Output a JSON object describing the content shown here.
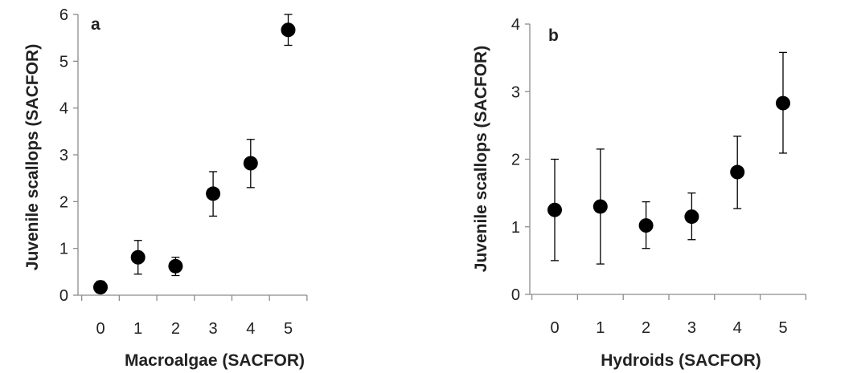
{
  "chart_data": [
    {
      "type": "scatter",
      "panel_label": "a",
      "xlabel": "Macroalgae (SACFOR)",
      "ylabel": "Juvenile scallops (SACFOR)",
      "x": [
        0,
        1,
        2,
        3,
        4,
        5
      ],
      "y": [
        0.17,
        0.81,
        0.62,
        2.17,
        2.82,
        5.67
      ],
      "error_low": [
        0.05,
        0.45,
        0.42,
        1.69,
        2.3,
        5.34
      ],
      "error_high": [
        0.3,
        1.17,
        0.81,
        2.64,
        3.33,
        6.0
      ],
      "xticks": [
        "0",
        "1",
        "2",
        "3",
        "4",
        "5"
      ],
      "yticks": [
        "0",
        "1",
        "2",
        "3",
        "4",
        "5",
        "6"
      ],
      "ylim": [
        0,
        6
      ],
      "grid": false,
      "marker_color": "#000000"
    },
    {
      "type": "scatter",
      "panel_label": "b",
      "xlabel": "Hydroids (SACFOR)",
      "ylabel": "Juvenile scallops (SACFOR)",
      "x": [
        0,
        1,
        2,
        3,
        4,
        5
      ],
      "y": [
        1.25,
        1.3,
        1.02,
        1.15,
        1.81,
        2.83
      ],
      "error_low": [
        0.5,
        0.45,
        0.68,
        0.81,
        1.27,
        2.09
      ],
      "error_high": [
        2.0,
        2.15,
        1.37,
        1.5,
        2.34,
        3.58
      ],
      "xticks": [
        "0",
        "1",
        "2",
        "3",
        "4",
        "5"
      ],
      "yticks": [
        "0",
        "1",
        "2",
        "3",
        "4"
      ],
      "ylim": [
        0,
        4
      ],
      "grid": false,
      "marker_color": "#000000"
    }
  ]
}
